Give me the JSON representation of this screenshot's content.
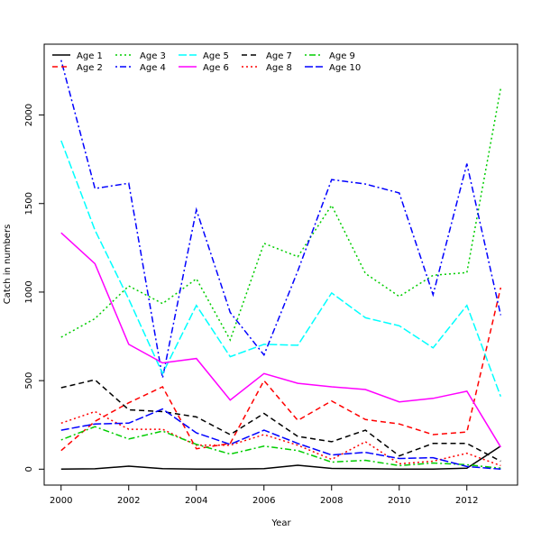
{
  "chart_data": {
    "type": "line",
    "xlabel": "Year",
    "ylabel": "Catch in numbers",
    "xlim": [
      1999.5,
      2013.5
    ],
    "ylim": [
      -90,
      2400
    ],
    "xticks": [
      2000,
      2002,
      2004,
      2006,
      2008,
      2010,
      2012
    ],
    "yticks": [
      0,
      500,
      1000,
      1500,
      2000
    ],
    "grid": false,
    "legend_position": "top-left",
    "x": [
      2000,
      2001,
      2002,
      2003,
      2004,
      2005,
      2006,
      2007,
      2008,
      2009,
      2010,
      2011,
      2012,
      2013
    ],
    "series": [
      {
        "name": "Age 1",
        "color": "#000000",
        "dash": "solid",
        "values": [
          0,
          2,
          17,
          3,
          0,
          0,
          3,
          22,
          4,
          3,
          0,
          0,
          5,
          130
        ]
      },
      {
        "name": "Age 2",
        "color": "#ff0000",
        "dash": "dashed",
        "values": [
          105,
          270,
          375,
          465,
          115,
          145,
          500,
          275,
          385,
          280,
          255,
          195,
          210,
          1025
        ]
      },
      {
        "name": "Age 3",
        "color": "#00cd00",
        "dash": "dotted",
        "values": [
          745,
          850,
          1035,
          935,
          1075,
          730,
          1275,
          1200,
          1490,
          1105,
          975,
          1095,
          1110,
          2150
        ]
      },
      {
        "name": "Age 4",
        "color": "#0000ff",
        "dash": "dotdash",
        "values": [
          2310,
          1585,
          1615,
          515,
          1465,
          885,
          645,
          1120,
          1635,
          1610,
          1560,
          985,
          1725,
          870
        ]
      },
      {
        "name": "Age 5",
        "color": "#00ffff",
        "dash": "longdash",
        "values": [
          1855,
          1350,
          960,
          540,
          925,
          635,
          705,
          700,
          995,
          855,
          810,
          685,
          925,
          410
        ]
      },
      {
        "name": "Age 6",
        "color": "#ff00ff",
        "dash": "solid",
        "values": [
          1335,
          1160,
          705,
          600,
          625,
          390,
          540,
          485,
          465,
          450,
          380,
          400,
          440,
          125
        ]
      },
      {
        "name": "Age 7",
        "color": "#000000",
        "dash": "dashed",
        "values": [
          460,
          505,
          335,
          325,
          295,
          195,
          315,
          185,
          155,
          220,
          75,
          145,
          145,
          45
        ]
      },
      {
        "name": "Age 8",
        "color": "#ff0000",
        "dash": "dotted",
        "values": [
          260,
          325,
          225,
          225,
          135,
          135,
          195,
          135,
          55,
          155,
          30,
          45,
          90,
          20
        ]
      },
      {
        "name": "Age 9",
        "color": "#00cd00",
        "dash": "dotdash",
        "values": [
          165,
          240,
          170,
          215,
          140,
          85,
          130,
          105,
          40,
          50,
          20,
          35,
          25,
          5
        ]
      },
      {
        "name": "Age 10",
        "color": "#0000ff",
        "dash": "longdash",
        "values": [
          220,
          255,
          260,
          340,
          205,
          140,
          220,
          145,
          80,
          95,
          60,
          65,
          15,
          0
        ]
      }
    ]
  }
}
